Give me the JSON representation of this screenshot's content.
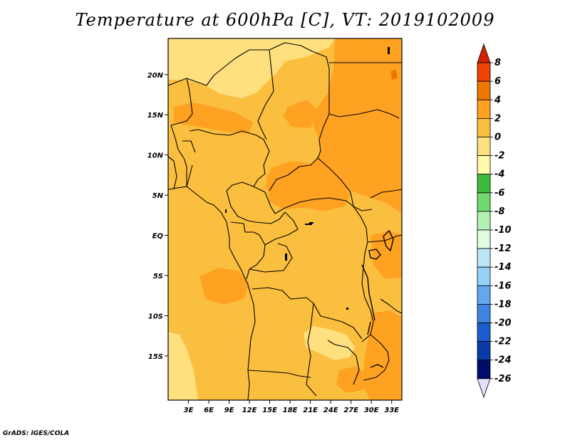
{
  "title": "Temperature at 600hPa [C], VT: 2019102009",
  "credit": "GrADS: IGES/COLA",
  "map": {
    "lon_range": [
      0,
      34.5
    ],
    "lat_range": [
      -20.5,
      24.5
    ],
    "x_ticks": [
      "3E",
      "6E",
      "9E",
      "12E",
      "15E",
      "18E",
      "21E",
      "24E",
      "27E",
      "30E",
      "33E"
    ],
    "x_tick_values": [
      3,
      6,
      9,
      12,
      15,
      18,
      21,
      24,
      27,
      30,
      33
    ],
    "y_ticks": [
      "20N",
      "15N",
      "10N",
      "5N",
      "EQ",
      "5S",
      "10S",
      "15S"
    ],
    "y_tick_values": [
      20,
      15,
      10,
      5,
      0,
      -5,
      -10,
      -15
    ]
  },
  "colorbar": {
    "labels": [
      "8",
      "6",
      "4",
      "2",
      "0",
      "-2",
      "-4",
      "-6",
      "-8",
      "-10",
      "-12",
      "-14",
      "-16",
      "-18",
      "-20",
      "-22",
      "-24",
      "-26"
    ],
    "colors": [
      "#d42200",
      "#ee4400",
      "#ee7700",
      "#ffa222",
      "#fbbf3f",
      "#fee07f",
      "#fffaaa",
      "#3dbb3d",
      "#6fd96f",
      "#b4f1b4",
      "#e1fde1",
      "#bde7f7",
      "#96d1f8",
      "#64a9f0",
      "#3e84e0",
      "#1c5dce",
      "#0a3aa8",
      "#000c6a",
      "#e0e0fa"
    ]
  },
  "chart_data": {
    "type": "heatmap",
    "title": "Temperature at 600hPa [C], VT: 2019102009",
    "variable": "Temperature at 600hPa",
    "units": "C",
    "valid_time": "2019102009",
    "x_ticks": [
      "3E",
      "6E",
      "9E",
      "12E",
      "15E",
      "18E",
      "21E",
      "24E",
      "27E",
      "30E",
      "33E"
    ],
    "y_ticks": [
      "20N",
      "15N",
      "10N",
      "5N",
      "EQ",
      "5S",
      "10S",
      "15S"
    ],
    "xlim": [
      0,
      34.5
    ],
    "ylim": [
      -20.5,
      24.5
    ],
    "contour_levels": [
      -26,
      -24,
      -22,
      -20,
      -18,
      -16,
      -14,
      -12,
      -10,
      -8,
      -6,
      -4,
      -2,
      0,
      2,
      4,
      6,
      8
    ],
    "regions": [
      {
        "range": "0 to 2",
        "area": "most of the domain, west coast, central basin, southern Africa"
      },
      {
        "range": "-2 to 0",
        "area": "northern Niger/Chad, southwest Angola coast, southern Zambia"
      },
      {
        "range": "2 to 4",
        "area": "Sudan, South Sudan, CAR, northeast DRC, Gabon/Congo coast, Tanzania/Mozambique"
      },
      {
        "range": "4 to 6",
        "area": "small spots near Egypt-Sudan border"
      }
    ]
  }
}
